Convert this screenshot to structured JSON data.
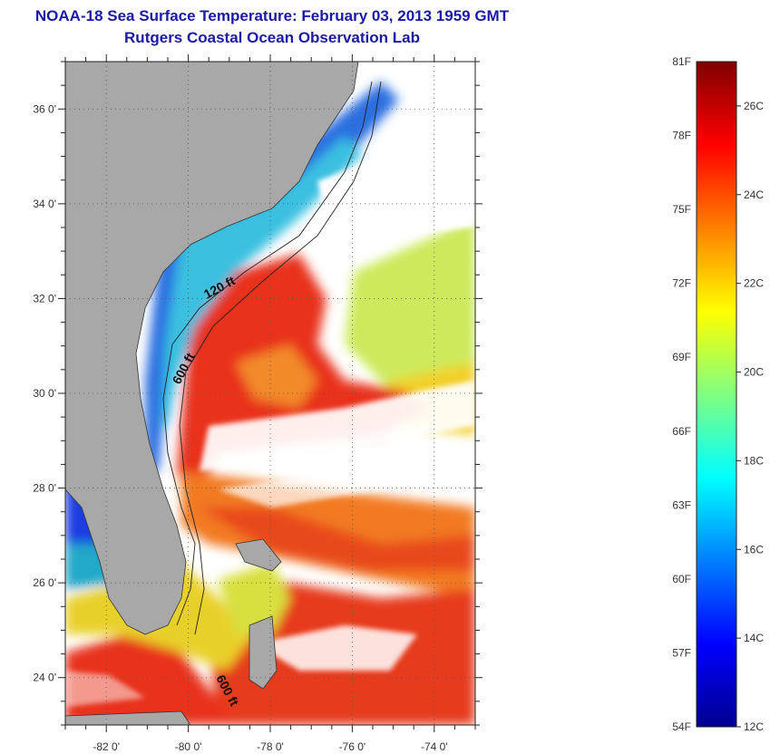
{
  "header": {
    "title": "NOAA-18 Sea Surface Temperature:  February 03, 2013 1959 GMT",
    "subtitle": "Rutgers Coastal Ocean Observation Lab"
  },
  "map": {
    "lat_range": [
      23,
      37
    ],
    "lon_range": [
      -83,
      -73
    ],
    "y_ticks": [
      "36 0'",
      "34 0'",
      "32 0'",
      "30 0'",
      "28 0'",
      "26 0'",
      "24 0'"
    ],
    "x_ticks": [
      "-82 0'",
      "-80 0'",
      "-78 0'",
      "-76 0'",
      "-74 0'"
    ],
    "contour_labels": [
      "120 ft",
      "600 ft",
      "600 ft"
    ],
    "colors": {
      "land": "#a8a8a8",
      "warm": "#e8331c",
      "cold": "#1535d8",
      "cloud": "#ffffff"
    }
  },
  "colorbar": {
    "f_labels": [
      "81F",
      "78F",
      "75F",
      "72F",
      "69F",
      "66F",
      "63F",
      "60F",
      "57F",
      "54F"
    ],
    "c_labels": [
      "26C",
      "24C",
      "22C",
      "20C",
      "18C",
      "16C",
      "14C",
      "12C"
    ],
    "range_f": [
      54,
      81
    ],
    "range_c": [
      12,
      27
    ]
  }
}
